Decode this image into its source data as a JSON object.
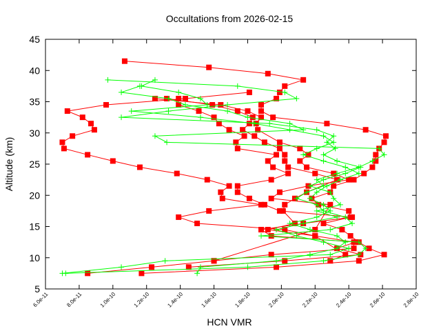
{
  "chart_data": {
    "type": "line",
    "title": "Occultations from 2026-02-15",
    "xlabel": "HCN VMR",
    "ylabel": "Altitude (km)",
    "x_scale": 1e-10,
    "xlim": [
      0.6,
      2.8
    ],
    "ylim": [
      5,
      45
    ],
    "xticks": [
      0.6,
      0.8,
      1.0,
      1.2,
      1.4,
      1.6,
      1.8,
      2.0,
      2.2,
      2.4,
      2.6,
      2.8
    ],
    "xtick_labels": [
      "6.0e-11",
      "8.0e-11",
      "1.0e-10",
      "1.2e-10",
      "1.4e-10",
      "1.6e-10",
      "1.8e-10",
      "2.0e-10",
      "2.2e-10",
      "2.4e-10",
      "2.6e-10",
      "2.8e-10"
    ],
    "yticks": [
      5,
      10,
      15,
      20,
      25,
      30,
      35,
      40,
      45
    ],
    "ytick_labels": [
      "5",
      "10",
      "15",
      "20",
      "25",
      "30",
      "35",
      "40",
      "45"
    ],
    "grid": false,
    "legend": "none",
    "series": [
      {
        "name": "red-profiles",
        "color": "#ff0000",
        "marker": "square",
        "profiles": [
          [
            [
              41.5,
              1.07
            ],
            [
              40.5,
              1.57
            ],
            [
              39.5,
              1.92
            ],
            [
              38.5,
              2.13
            ],
            [
              37.5,
              2.02
            ],
            [
              36.5,
              1.99
            ],
            [
              35.5,
              1.97
            ],
            [
              34.5,
              1.88
            ],
            [
              33.5,
              1.88
            ],
            [
              32.5,
              1.95
            ],
            [
              31.5,
              2.27
            ],
            [
              30.5,
              2.5
            ],
            [
              29.5,
              2.62
            ],
            [
              28.5,
              2.61
            ],
            [
              27.5,
              2.58
            ],
            [
              26.5,
              2.56
            ],
            [
              25.5,
              2.56
            ],
            [
              24.5,
              2.54
            ],
            [
              23.5,
              2.49
            ],
            [
              22.5,
              2.43
            ],
            [
              21.5,
              2.31
            ],
            [
              20.5,
              2.29
            ],
            [
              19.5,
              2.18
            ],
            [
              18.5,
              2.22
            ],
            [
              17.5,
              2.4
            ],
            [
              16.5,
              2.41
            ],
            [
              15.5,
              2.25
            ],
            [
              14.5,
              2.36
            ],
            [
              13.5,
              2.41
            ],
            [
              12.5,
              2.46
            ],
            [
              11.5,
              2.52
            ],
            [
              10.5,
              2.61
            ],
            [
              9.5,
              2.46
            ],
            [
              8.5,
              1.97
            ],
            [
              7.5,
              1.17
            ]
          ],
          [
            [
              36.5,
              1.81
            ],
            [
              35.5,
              1.43
            ],
            [
              34.5,
              0.96
            ],
            [
              33.5,
              0.73
            ],
            [
              32.5,
              0.82
            ],
            [
              31.5,
              0.87
            ],
            [
              30.5,
              0.89
            ],
            [
              29.5,
              0.76
            ],
            [
              28.5,
              0.7
            ],
            [
              27.5,
              0.71
            ],
            [
              26.5,
              0.85
            ],
            [
              25.5,
              1.0
            ],
            [
              24.5,
              1.16
            ],
            [
              23.5,
              1.38
            ],
            [
              22.5,
              1.56
            ],
            [
              21.5,
              1.69
            ],
            [
              20.5,
              1.64
            ],
            [
              19.5,
              1.65
            ],
            [
              18.5,
              1.88
            ],
            [
              17.5,
              1.57
            ],
            [
              16.5,
              1.39
            ],
            [
              15.5,
              1.5
            ],
            [
              14.5,
              2.02
            ],
            [
              13.5,
              2.2
            ],
            [
              12.5,
              2.43
            ],
            [
              11.5,
              2.43
            ],
            [
              10.5,
              1.94
            ],
            [
              9.5,
              1.6
            ],
            [
              8.5,
              1.23
            ],
            [
              7.5,
              0.85
            ]
          ],
          [
            [
              35.5,
              1.39
            ],
            [
              34.5,
              1.39
            ],
            [
              33.5,
              1.51
            ],
            [
              32.5,
              1.6
            ],
            [
              31.5,
              1.63
            ],
            [
              30.5,
              1.69
            ],
            [
              29.5,
              1.78
            ],
            [
              28.5,
              1.73
            ],
            [
              27.5,
              1.74
            ],
            [
              26.5,
              1.97
            ],
            [
              25.5,
              1.92
            ],
            [
              24.5,
              1.95
            ],
            [
              23.5,
              2.04
            ],
            [
              22.5,
              1.94
            ],
            [
              21.5,
              1.74
            ],
            [
              20.5,
              1.74
            ],
            [
              19.5,
              1.81
            ],
            [
              18.5,
              1.9
            ],
            [
              17.5,
              1.99
            ],
            [
              16.5,
              2.42
            ],
            [
              15.5,
              2.13
            ],
            [
              14.5,
              1.88
            ],
            [
              13.5,
              1.94
            ],
            [
              12.5,
              2.44
            ],
            [
              11.5,
              2.33
            ],
            [
              10.5,
              2.47
            ],
            [
              9.5,
              2.02
            ],
            [
              8.5,
              1.45
            ]
          ],
          [
            [
              35.5,
              1.32
            ],
            [
              34.5,
              1.59
            ],
            [
              33.5,
              1.74
            ],
            [
              32.5,
              1.83
            ],
            [
              31.5,
              1.81
            ],
            [
              30.5,
              1.77
            ],
            [
              29.5,
              1.84
            ],
            [
              28.5,
              1.9
            ],
            [
              27.5,
              1.99
            ],
            [
              26.5,
              2.02
            ],
            [
              25.5,
              2.02
            ],
            [
              24.5,
              2.04
            ],
            [
              23.5,
              2.2
            ],
            [
              22.5,
              2.33
            ],
            [
              20.5,
              2.15
            ],
            [
              19.5,
              2.08
            ],
            [
              18.5,
              2.02
            ],
            [
              17.5,
              2.01
            ],
            [
              15.5,
              2.08
            ],
            [
              14.5,
              1.92
            ],
            [
              13.5,
              2.2
            ],
            [
              10.5,
              2.38
            ],
            [
              9.5,
              2.29
            ]
          ],
          [
            [
              35.5,
              1.25
            ],
            [
              34.5,
              1.64
            ],
            [
              33.5,
              1.8
            ],
            [
              32.5,
              1.88
            ],
            [
              31.5,
              1.85
            ],
            [
              30.5,
              1.86
            ],
            [
              28.5,
              1.99
            ],
            [
              27.5,
              2.11
            ],
            [
              26.5,
              2.16
            ],
            [
              25.5,
              2.11
            ],
            [
              24.5,
              2.15
            ],
            [
              23.5,
              2.31
            ],
            [
              22.5,
              2.4
            ],
            [
              21.5,
              2.16
            ],
            [
              20.5,
              1.99
            ],
            [
              19.5,
              1.94
            ],
            [
              18.5,
              2.29
            ],
            [
              14.5,
              2.2
            ],
            [
              9.5,
              1.6
            ]
          ]
        ]
      },
      {
        "name": "green-profiles",
        "color": "#00ff00",
        "marker": "plus",
        "profiles": [
          [
            [
              38.5,
              0.97
            ],
            [
              37.5,
              1.74
            ],
            [
              36.5,
              2.02
            ],
            [
              35.5,
              2.09
            ],
            [
              34.5,
              1.68
            ],
            [
              33.5,
              1.33
            ],
            [
              32.5,
              1.05
            ],
            [
              31.5,
              1.93
            ],
            [
              30.5,
              2.21
            ],
            [
              29.5,
              2.31
            ],
            [
              28.5,
              2.27
            ],
            [
              27.5,
              2.32
            ],
            [
              26.5,
              2.25
            ],
            [
              25.5,
              2.33
            ],
            [
              24.5,
              2.47
            ],
            [
              23.5,
              2.38
            ],
            [
              22.5,
              2.25
            ],
            [
              21.5,
              2.17
            ],
            [
              20.5,
              2.29
            ],
            [
              19.5,
              2.31
            ],
            [
              18.5,
              2.35
            ],
            [
              17.5,
              2.21
            ],
            [
              16.5,
              2.33
            ],
            [
              15.5,
              2.13
            ],
            [
              14.5,
              1.97
            ],
            [
              13.5,
              2.09
            ],
            [
              12.5,
              2.25
            ],
            [
              11.5,
              2.4
            ],
            [
              10.5,
              2.29
            ],
            [
              9.5,
              1.31
            ],
            [
              8.5,
              1.05
            ],
            [
              7.5,
              0.7
            ]
          ],
          [
            [
              37.5,
              1.16
            ],
            [
              36.5,
              1.05
            ],
            [
              35.5,
              1.33
            ],
            [
              34.5,
              1.43
            ],
            [
              33.5,
              1.68
            ],
            [
              32.5,
              1.8
            ],
            [
              31.5,
              2.05
            ],
            [
              30.5,
              2.13
            ],
            [
              29.5,
              1.25
            ],
            [
              28.5,
              1.32
            ],
            [
              27.5,
              2.58
            ],
            [
              26.5,
              2.61
            ],
            [
              25.5,
              2.54
            ],
            [
              24.5,
              2.46
            ],
            [
              23.5,
              2.33
            ],
            [
              22.5,
              2.21
            ],
            [
              21.5,
              2.25
            ],
            [
              20.5,
              2.15
            ],
            [
              19.5,
              2.09
            ],
            [
              18.5,
              2.21
            ],
            [
              17.5,
              2.25
            ],
            [
              16.5,
              2.38
            ],
            [
              15.5,
              2.42
            ],
            [
              14.5,
              2.29
            ],
            [
              13.5,
              1.88
            ],
            [
              12.5,
              2.46
            ],
            [
              11.5,
              2.5
            ],
            [
              10.5,
              2.46
            ],
            [
              9.5,
              2.25
            ],
            [
              8.5,
              1.8
            ],
            [
              7.5,
              0.72
            ]
          ],
          [
            [
              38.5,
              1.25
            ],
            [
              37.5,
              1.17
            ],
            [
              36.5,
              1.39
            ],
            [
              35.5,
              1.52
            ],
            [
              34.5,
              1.56
            ],
            [
              33.5,
              1.11
            ],
            [
              32.5,
              1.52
            ],
            [
              31.5,
              1.84
            ],
            [
              30.5,
              2.05
            ],
            [
              29.5,
              2.25
            ],
            [
              28.5,
              2.31
            ],
            [
              27.5,
              2.21
            ],
            [
              26.5,
              2.13
            ],
            [
              25.5,
              2.25
            ],
            [
              24.5,
              2.38
            ],
            [
              23.5,
              2.46
            ],
            [
              22.5,
              2.35
            ],
            [
              21.5,
              2.27
            ],
            [
              20.5,
              2.21
            ],
            [
              19.5,
              2.17
            ],
            [
              18.5,
              2.25
            ],
            [
              17.5,
              2.29
            ],
            [
              16.5,
              2.21
            ],
            [
              15.5,
              2.05
            ],
            [
              14.5,
              2.17
            ],
            [
              13.5,
              2.33
            ],
            [
              12.5,
              2.38
            ],
            [
              11.5,
              2.33
            ],
            [
              10.5,
              2.17
            ],
            [
              9.5,
              1.97
            ],
            [
              8.5,
              1.52
            ],
            [
              7.5,
              1.5
            ]
          ]
        ]
      }
    ]
  }
}
